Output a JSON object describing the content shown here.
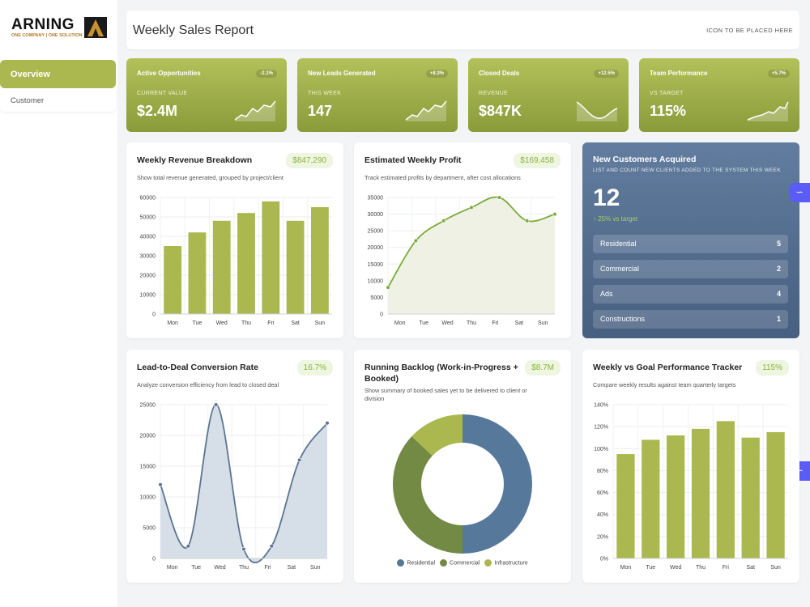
{
  "brand": {
    "name": "ARNING",
    "tagline": "ONE COMPANY | ONE SOLUTION"
  },
  "sidebar": {
    "items": [
      {
        "label": "Overview"
      },
      {
        "label": "Customer"
      }
    ]
  },
  "header": {
    "title": "Weekly Sales Report",
    "icon_placeholder": "ICON TO BE PLACED HERE"
  },
  "kpis": [
    {
      "title": "Active Opportunities",
      "badge": "-2.1%",
      "sub": "CURRENT VALUE",
      "value": "$2.4M"
    },
    {
      "title": "New Leads Generated",
      "badge": "+8.3%",
      "sub": "THIS WEEK",
      "value": "147"
    },
    {
      "title": "Closed Deals",
      "badge": "+12.5%",
      "sub": "REVENUE",
      "value": "$847K"
    },
    {
      "title": "Team Performance",
      "badge": "+5.7%",
      "sub": "VS TARGET",
      "value": "115%"
    }
  ],
  "revenue": {
    "title": "Weekly Revenue Breakdown",
    "badge": "$847,290",
    "desc": "Show total revenue generated, grouped by project/client"
  },
  "profit": {
    "title": "Estimated Weekly Profit",
    "badge": "$169,458",
    "desc": "Track estimated profits by department, after cost allocations"
  },
  "customers": {
    "title": "New Customers Acquired",
    "subtitle": "LIST AND COUNT NEW CLIENTS ADDED TO THE SYSTEM THIS WEEK",
    "count": "12",
    "delta": "↑ 25% vs target",
    "rows": [
      {
        "label": "Residential",
        "value": "5"
      },
      {
        "label": "Commercial",
        "value": "2"
      },
      {
        "label": "Ads",
        "value": "4"
      },
      {
        "label": "Constructions",
        "value": "1"
      }
    ]
  },
  "conversion": {
    "title": "Lead-to-Deal Conversion Rate",
    "badge": "16.7%",
    "desc": "Analyze conversion efficiency from lead to closed deal"
  },
  "backlog": {
    "title_line1": "Running Backlog (Work-in-Progress +",
    "title_line2": "Booked)",
    "badge": "$8.7M",
    "desc_line1": "Show summary of booked sales yet to be delivered to client or",
    "desc_line2": "division"
  },
  "goal": {
    "title": "Weekly vs Goal Performance Tracker",
    "badge": "115%",
    "desc": "Compare weekly results against team quarterly targets"
  },
  "colors": {
    "accent": "#aab84f",
    "accent_dark": "#8a9b3a",
    "blue": "#56789b",
    "green_dark": "#738a45",
    "line": "#7aab3a"
  },
  "chart_data": [
    {
      "type": "bar",
      "categories": [
        "Mon",
        "Tue",
        "Wed",
        "Thu",
        "Fri",
        "Sat",
        "Sun"
      ],
      "values": [
        35000,
        42000,
        48000,
        52000,
        58000,
        48000,
        55000
      ],
      "ylim": [
        0,
        60000
      ],
      "yticks": [
        "0",
        "10000",
        "20000",
        "30000",
        "40000",
        "50000",
        "60000"
      ]
    },
    {
      "type": "area",
      "categories": [
        "Mon",
        "Tue",
        "Wed",
        "Thu",
        "Fri",
        "Sat",
        "Sun"
      ],
      "values": [
        8000,
        22000,
        28000,
        32000,
        35000,
        28000,
        30000
      ],
      "ylim": [
        0,
        35000
      ],
      "yticks": [
        "0",
        "5000",
        "10000",
        "15000",
        "20000",
        "25000",
        "30000",
        "35000"
      ]
    },
    {
      "type": "area",
      "categories": [
        "Mon",
        "Tue",
        "Wed",
        "Thu",
        "Fri",
        "Sat",
        "Sun"
      ],
      "values": [
        12000,
        2000,
        25000,
        1500,
        2000,
        16000,
        22000
      ],
      "ylim": [
        0,
        25000
      ],
      "yticks": [
        "0",
        "5000",
        "10000",
        "15000",
        "20000",
        "25000"
      ]
    },
    {
      "type": "pie",
      "donut": true,
      "categories": [
        "Residential",
        "Commercial",
        "Infrastructure"
      ],
      "values": [
        50,
        37,
        13
      ]
    },
    {
      "type": "bar",
      "categories": [
        "Mon",
        "Tue",
        "Wed",
        "Thu",
        "Fri",
        "Sat",
        "Sun"
      ],
      "values": [
        95,
        108,
        112,
        118,
        125,
        110,
        115
      ],
      "ylim": [
        0,
        140
      ],
      "yticks": [
        "0%",
        "20%",
        "40%",
        "60%",
        "80%",
        "100%",
        "120%",
        "140%"
      ]
    }
  ]
}
